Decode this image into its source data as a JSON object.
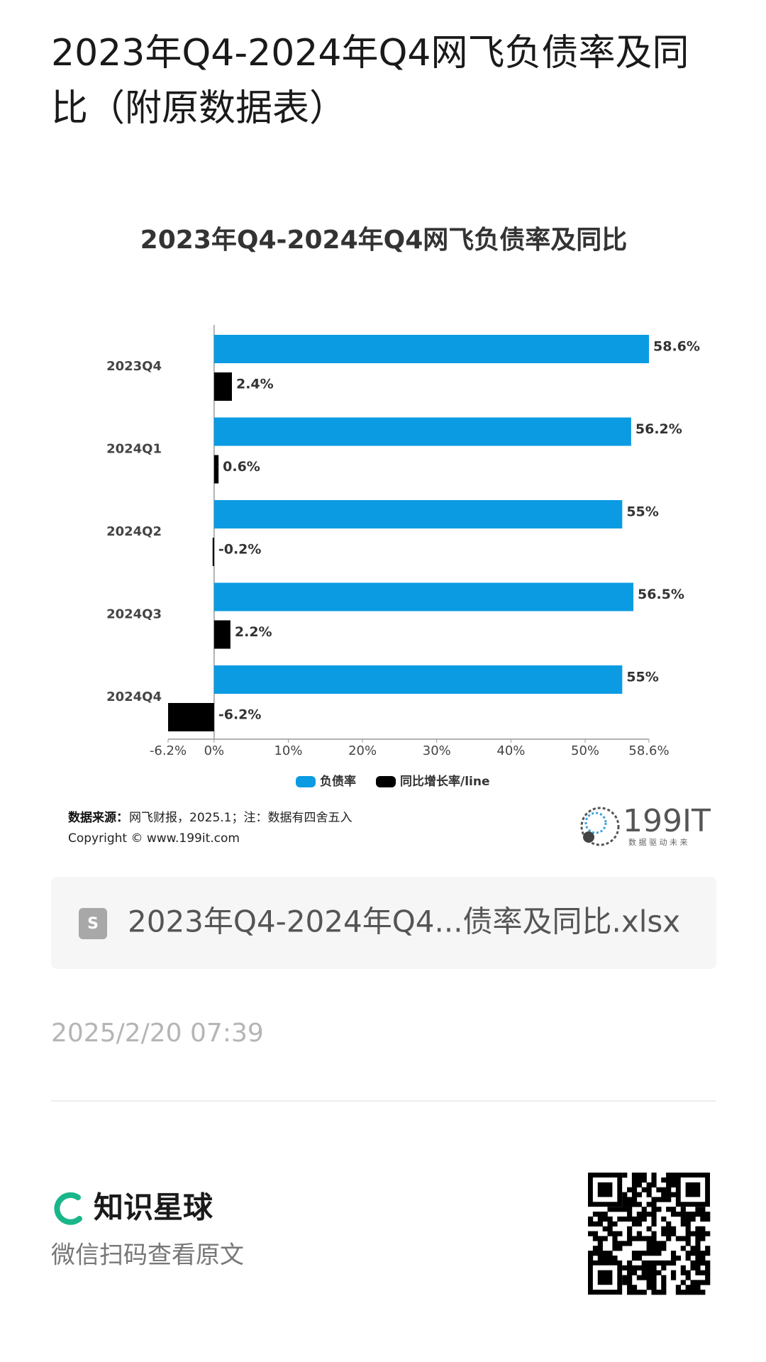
{
  "page_title": "2023年Q4-2024年Q4网飞负债率及同比（附原数据表）",
  "chart_data": {
    "type": "bar",
    "orientation": "horizontal",
    "title": "2023年Q4-2024年Q4网飞负债率及同比",
    "categories": [
      "2023Q4",
      "2024Q1",
      "2024Q2",
      "2024Q3",
      "2024Q4"
    ],
    "series": [
      {
        "name": "负债率",
        "color": "#0a9be2",
        "values": [
          58.6,
          56.2,
          55,
          56.5,
          55
        ],
        "value_labels": [
          "58.6%",
          "56.2%",
          "55%",
          "56.5%",
          "55%"
        ]
      },
      {
        "name": "同比增长率/line",
        "color": "#000000",
        "values": [
          2.4,
          0.6,
          -0.2,
          2.2,
          -6.2
        ],
        "value_labels": [
          "2.4%",
          "0.6%",
          "-0.2%",
          "2.2%",
          "-6.2%"
        ]
      }
    ],
    "xlim": [
      -6.2,
      58.6
    ],
    "xticks": [
      {
        "value": -6.2,
        "label": "-6.2%"
      },
      {
        "value": 0,
        "label": "0%"
      },
      {
        "value": 10,
        "label": "10%"
      },
      {
        "value": 20,
        "label": "20%"
      },
      {
        "value": 30,
        "label": "30%"
      },
      {
        "value": 40,
        "label": "40%"
      },
      {
        "value": 50,
        "label": "50%"
      },
      {
        "value": 58.6,
        "label": "58.6%"
      }
    ],
    "legend": "bottom"
  },
  "source": {
    "label": "数据来源：",
    "text": "网飞财报，2025.1；注：数据有四舍五入",
    "copyright": "Copyright ©  www.199it.com"
  },
  "logo": {
    "name": "199IT",
    "slogan": "数 据 驱 动 未 来"
  },
  "attachment": {
    "filename": "2023年Q4-2024年Q4...债率及同比.xlsx"
  },
  "date": "2025/2/20 07:39",
  "footer": {
    "brand": "知识星球",
    "hint": "微信扫码查看原文"
  }
}
